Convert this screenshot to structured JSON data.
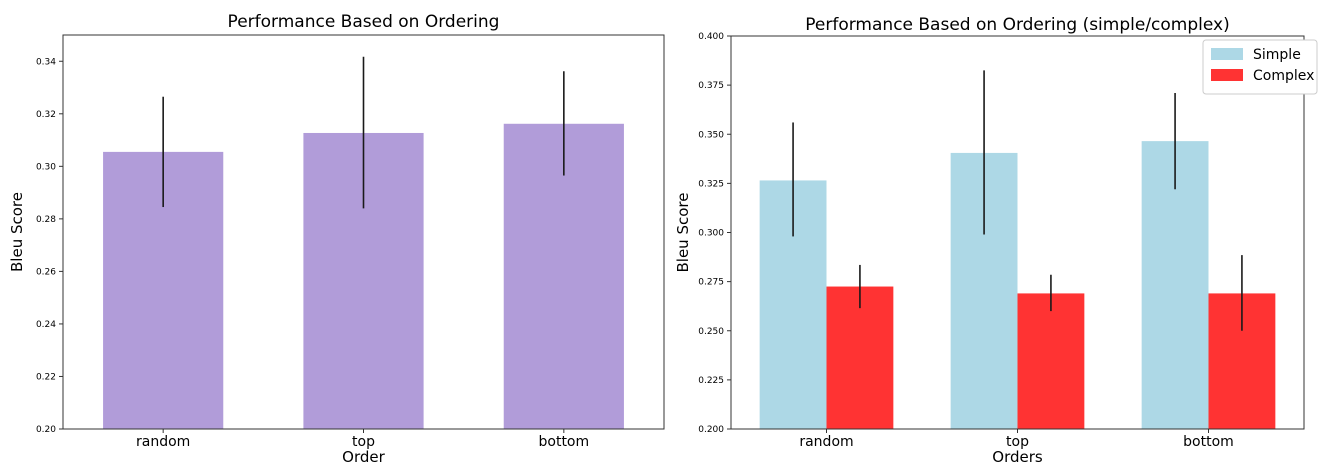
{
  "chart_data": [
    {
      "type": "bar",
      "title": "Performance Based on Ordering",
      "xlabel": "Order",
      "ylabel": "Bleu Score",
      "ylim": [
        0.2,
        0.35
      ],
      "yticks": [
        "0.20",
        "0.22",
        "0.24",
        "0.26",
        "0.28",
        "0.30",
        "0.32",
        "0.34"
      ],
      "categories": [
        "random",
        "top",
        "bottom"
      ],
      "series": [
        {
          "color": "#b19cd9",
          "values": [
            0.3055,
            0.3127,
            0.3162
          ],
          "error_low": [
            0.2845,
            0.284,
            0.2965
          ],
          "error_high": [
            0.3265,
            0.3417,
            0.3362
          ]
        }
      ],
      "grid": false,
      "legend": null
    },
    {
      "type": "bar",
      "title": "Performance Based on Ordering (simple/complex)",
      "xlabel": "Orders",
      "ylabel": "Bleu Score",
      "ylim": [
        0.2,
        0.4
      ],
      "yticks": [
        "0.200",
        "0.225",
        "0.250",
        "0.275",
        "0.300",
        "0.325",
        "0.350",
        "0.375",
        "0.400"
      ],
      "categories": [
        "random",
        "top",
        "bottom"
      ],
      "series": [
        {
          "name": "Simple",
          "color": "#add8e6",
          "values": [
            0.3265,
            0.3405,
            0.3465
          ],
          "error_low": [
            0.298,
            0.299,
            0.322
          ],
          "error_high": [
            0.356,
            0.3825,
            0.371
          ]
        },
        {
          "name": "Complex",
          "color": "#ff3333",
          "values": [
            0.2725,
            0.269,
            0.269
          ],
          "error_low": [
            0.2615,
            0.26,
            0.25
          ],
          "error_high": [
            0.2835,
            0.2785,
            0.2885
          ]
        }
      ],
      "grid": false,
      "legend": "top-right"
    }
  ]
}
